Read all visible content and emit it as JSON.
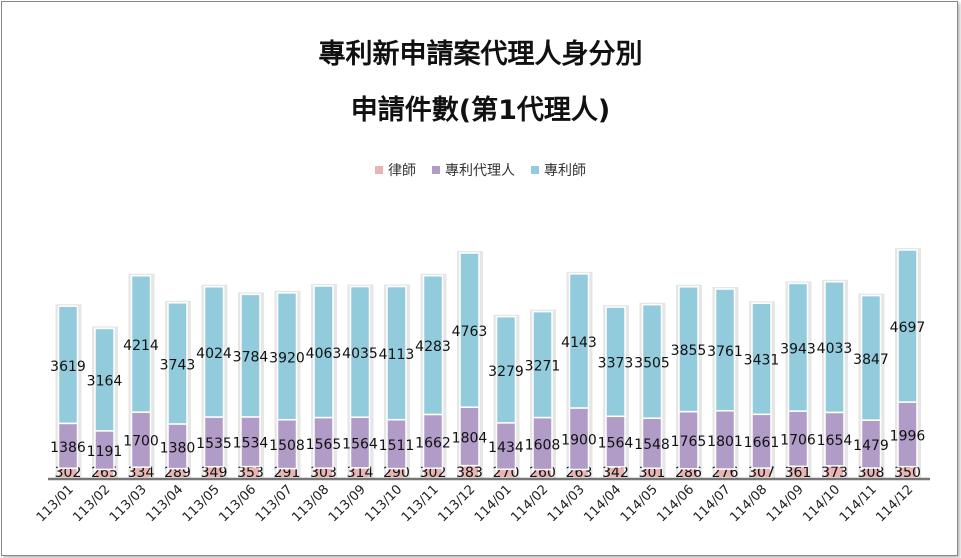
{
  "chart_data": {
    "type": "bar",
    "stacked": true,
    "title": [
      "專利新申請案代理人身分別",
      "申請件數(第1代理人)"
    ],
    "categories": [
      "113/01",
      "113/02",
      "113/03",
      "113/04",
      "113/05",
      "113/06",
      "113/07",
      "113/08",
      "113/09",
      "113/10",
      "113/11",
      "113/12",
      "114/01",
      "114/02",
      "114/03",
      "114/04",
      "114/05",
      "114/06",
      "114/07",
      "114/08",
      "114/09",
      "114/10",
      "114/11",
      "114/12"
    ],
    "series": [
      {
        "name": "律師",
        "color": "#e8b4b4",
        "values": [
          302,
          265,
          334,
          289,
          349,
          353,
          291,
          303,
          314,
          290,
          302,
          383,
          270,
          260,
          263,
          342,
          301,
          286,
          276,
          307,
          361,
          373,
          308,
          350
        ]
      },
      {
        "name": "專利代理人",
        "color": "#b09cc6",
        "values": [
          1386,
          1191,
          1700,
          1380,
          1535,
          1534,
          1508,
          1565,
          1564,
          1511,
          1662,
          1804,
          1434,
          1608,
          1900,
          1564,
          1548,
          1765,
          1801,
          1661,
          1706,
          1654,
          1479,
          1996
        ]
      },
      {
        "name": "專利師",
        "color": "#92cbdc",
        "values": [
          3619,
          3164,
          4214,
          3743,
          4024,
          3784,
          3920,
          4063,
          4035,
          4113,
          4283,
          4763,
          3279,
          3271,
          4143,
          3373,
          3505,
          3855,
          3761,
          3431,
          3943,
          4033,
          3847,
          4697
        ]
      }
    ],
    "ylim": [
      0,
      8000
    ],
    "grid": false,
    "legend_position": "top",
    "data_labels": true
  }
}
